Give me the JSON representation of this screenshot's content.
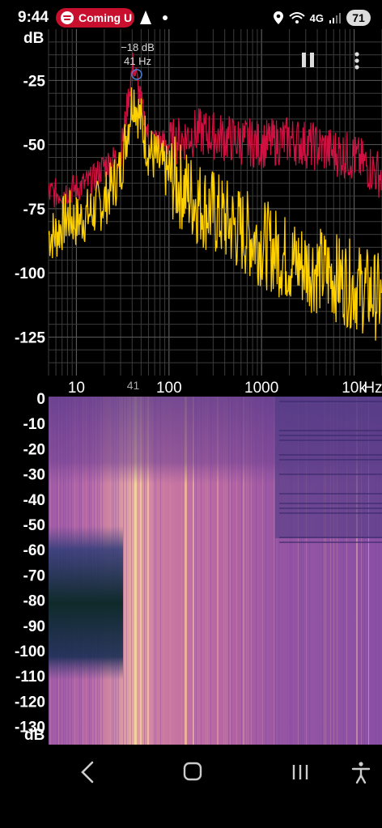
{
  "status_bar": {
    "time": "9:44",
    "notification_chip": "Coming U",
    "network": "4G",
    "battery": "71"
  },
  "spectrum": {
    "unit_label": "dB",
    "y_ticks": [
      "-25",
      "-50",
      "-75",
      "-100",
      "-125"
    ],
    "x_ticks": [
      "10",
      "100",
      "1000",
      "10k",
      "Hz"
    ],
    "peak_marker_tick": "41",
    "peak_readout": {
      "level": "−18 dB",
      "frequency": "41 Hz"
    },
    "colors": {
      "live": "#ffd000",
      "peak_hold": "#d01040",
      "grid": "#3c3c3c"
    }
  },
  "spectrogram": {
    "unit_label": "dB",
    "y_ticks": [
      "0",
      "-10",
      "-20",
      "-30",
      "-40",
      "-50",
      "-60",
      "-70",
      "-80",
      "-90",
      "-100",
      "-110",
      "-120",
      "-130"
    ]
  },
  "controls": {
    "pause_icon": "pause-icon",
    "menu_icon": "kebab-menu-icon"
  },
  "nav_bar": {
    "back": "back-icon",
    "home": "home-icon",
    "recents": "recents-icon",
    "accessibility": "accessibility-icon"
  },
  "chart_data": {
    "type": "line",
    "xlabel": "Hz",
    "ylabel": "dB",
    "x_scale": "log",
    "xlim": [
      5,
      20000
    ],
    "ylim": [
      -140,
      -5
    ],
    "grid": true,
    "series": [
      {
        "x": [
          6,
          8,
          10,
          15,
          20,
          30,
          41,
          60,
          100,
          200,
          500,
          1000,
          2000,
          5000,
          10000,
          20000
        ],
        "values": [
          -85,
          -78,
          -80,
          -76,
          -72,
          -60,
          -30,
          -52,
          -62,
          -72,
          -82,
          -88,
          -95,
          -100,
          -105,
          -110
        ]
      },
      {
        "x": [
          6,
          8,
          10,
          15,
          20,
          30,
          41,
          60,
          100,
          200,
          500,
          1000,
          2000,
          5000,
          10000,
          20000
        ],
        "values": [
          -69,
          -68,
          -67,
          -64,
          -58,
          -54,
          -18,
          -48,
          -50,
          -45,
          -48,
          -50,
          -48,
          -52,
          -55,
          -62
        ]
      }
    ]
  }
}
